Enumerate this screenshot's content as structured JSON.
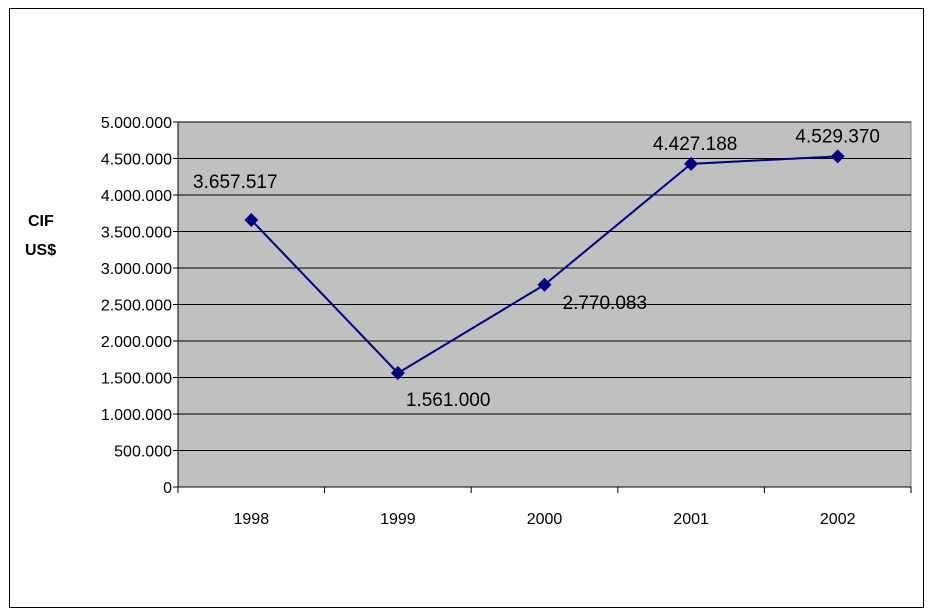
{
  "chart_data": {
    "type": "line",
    "title": "",
    "xlabel": "",
    "ylabel_lines": [
      "CIF",
      "US$"
    ],
    "categories": [
      "1998",
      "1999",
      "2000",
      "2001",
      "2002"
    ],
    "series": [
      {
        "values": [
          3657517,
          1561000,
          2770083,
          4427188,
          4529370
        ]
      }
    ],
    "data_labels": [
      "3.657.517",
      "1.561.000",
      "2.770.083",
      "4.427.188",
      "4.529.370"
    ],
    "yticks": [
      0,
      500000,
      1000000,
      1500000,
      2000000,
      2500000,
      3000000,
      3500000,
      4000000,
      4500000,
      5000000
    ],
    "ytick_labels": [
      "0",
      "500.000",
      "1.000.000",
      "1.500.000",
      "2.000.000",
      "2.500.000",
      "3.000.000",
      "3.500.000",
      "4.000.000",
      "4.500.000",
      "5.000.000"
    ],
    "ylim": [
      0,
      5000000
    ],
    "grid": true,
    "legend": "none",
    "colors": {
      "plot_background": "#c0c0c0",
      "line": "#000080",
      "marker": "#000080"
    }
  }
}
